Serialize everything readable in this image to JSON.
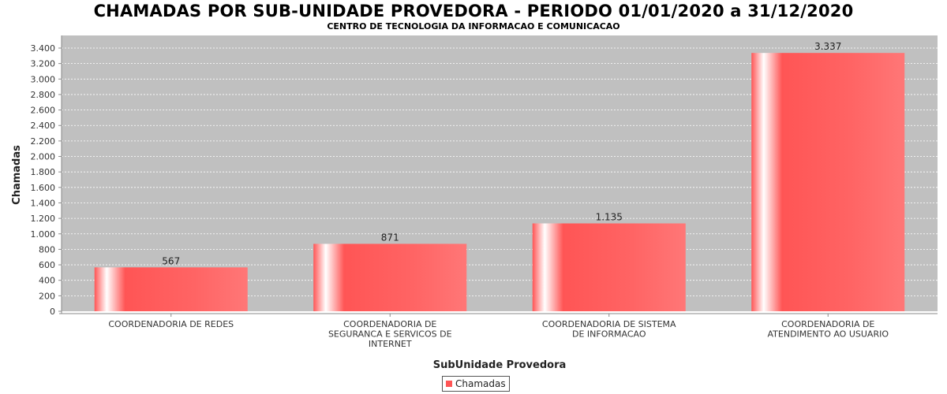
{
  "chart_data": {
    "type": "bar",
    "title": "CHAMADAS POR SUB-UNIDADE PROVEDORA - PERIODO 01/01/2020 a 31/12/2020",
    "subtitle": "CENTRO DE TECNOLOGIA DA INFORMACAO E COMUNICACAO",
    "xlabel": "SubUnidade Provedora",
    "ylabel": "Chamadas",
    "categories": [
      [
        "COORDENADORIA DE REDES"
      ],
      [
        "COORDENADORIA DE",
        "SEGURANCA E SERVICOS DE",
        "INTERNET"
      ],
      [
        "COORDENADORIA DE SISTEMA",
        "DE INFORMACAO"
      ],
      [
        "COORDENADORIA DE",
        "ATENDIMENTO AO USUARIO"
      ]
    ],
    "series": [
      {
        "name": "Chamadas",
        "values": [
          567,
          871,
          1135,
          3337
        ]
      }
    ],
    "value_labels": [
      "567",
      "871",
      "1.135",
      "3.337"
    ],
    "ylim": [
      0,
      3400
    ],
    "yticks": [
      0,
      200,
      400,
      600,
      800,
      1000,
      1200,
      1400,
      1600,
      1800,
      2000,
      2200,
      2400,
      2600,
      2800,
      3000,
      3200,
      3400
    ],
    "ytick_labels": [
      "0",
      "200",
      "400",
      "600",
      "800",
      "1.000",
      "1.200",
      "1.400",
      "1.600",
      "1.800",
      "2.000",
      "2.200",
      "2.400",
      "2.600",
      "2.800",
      "3.000",
      "3.200",
      "3.400"
    ],
    "grid": true,
    "legend_position": "bottom-center",
    "colors": {
      "bar": "#ff5555",
      "plot_background": "#c0c0c0",
      "grid": "#ffffff"
    }
  }
}
